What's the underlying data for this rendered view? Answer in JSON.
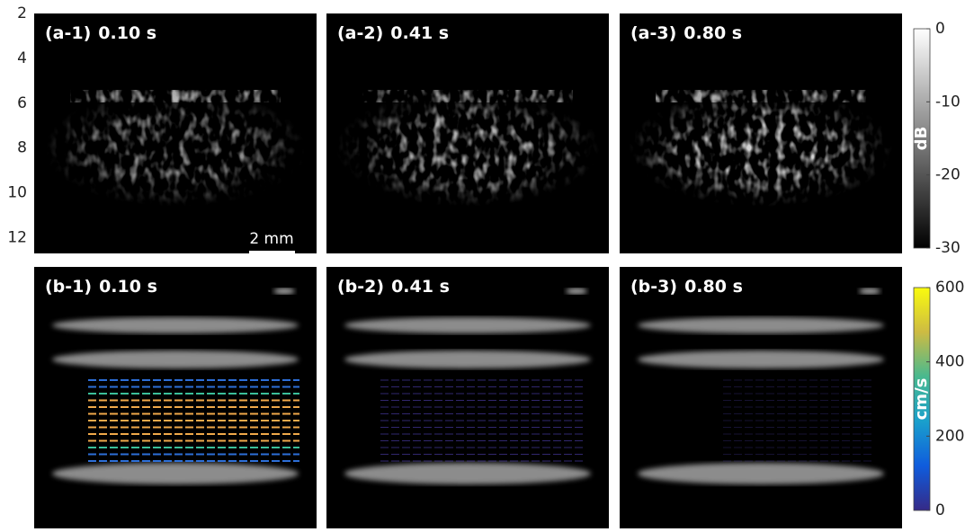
{
  "depth_axis": {
    "ticks": [
      2,
      4,
      6,
      8,
      10,
      12
    ],
    "range": [
      2,
      12.7
    ]
  },
  "panels": [
    {
      "label": "(a-1)",
      "time": "0.10 s"
    },
    {
      "label": "(a-2)",
      "time": "0.41 s"
    },
    {
      "label": "(a-3)",
      "time": "0.80 s"
    },
    {
      "label": "(b-1)",
      "time": "0.10 s"
    },
    {
      "label": "(b-2)",
      "time": "0.41 s"
    },
    {
      "label": "(b-3)",
      "time": "0.80 s"
    }
  ],
  "scale_bar": "2 mm",
  "colorbars": [
    {
      "label": "dB",
      "range": [
        0,
        -30
      ],
      "ticks": [
        0,
        -10,
        -20,
        -30
      ]
    },
    {
      "label": "cm/s",
      "range": [
        600,
        0
      ],
      "ticks": [
        0,
        200,
        400,
        600
      ]
    }
  ]
}
